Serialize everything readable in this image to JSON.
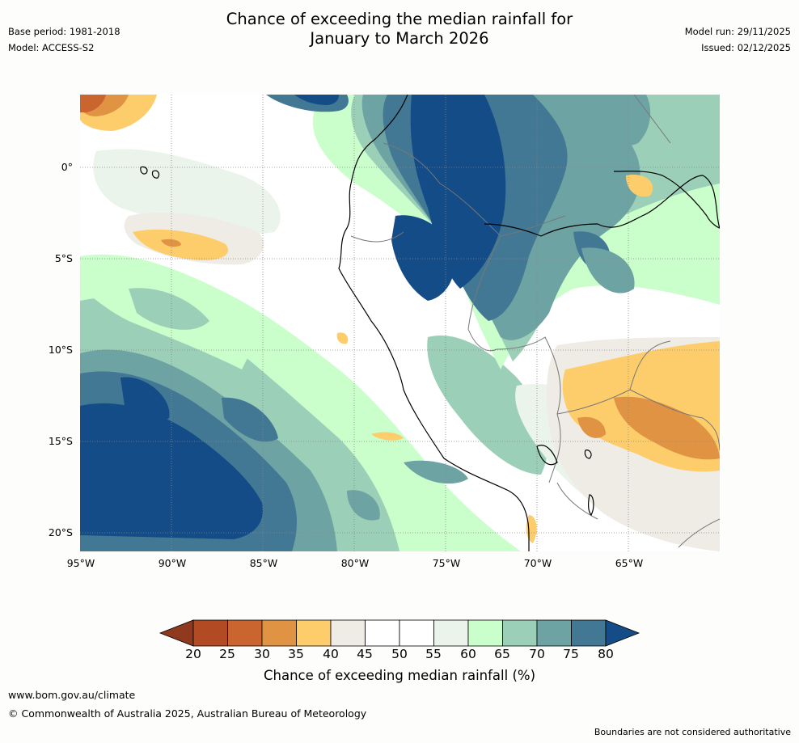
{
  "title_line1": "Chance of exceeding the median rainfall for",
  "title_line2": "January to March 2026",
  "base_period": "Base period: 1981-2018",
  "model": "Model: ACCESS-S2",
  "model_run": "Model run: 29/11/2025",
  "issued": "Issued: 02/12/2025",
  "lat_labels": [
    "0°",
    "5°S",
    "10°S",
    "15°S",
    "20°S"
  ],
  "lon_labels": [
    "95°W",
    "90°W",
    "85°W",
    "80°W",
    "75°W",
    "70°W",
    "65°W"
  ],
  "legend": {
    "ticks": [
      "20",
      "25",
      "30",
      "35",
      "40",
      "45",
      "50",
      "55",
      "60",
      "65",
      "70",
      "75",
      "80"
    ],
    "under_color": "#8f3a1f",
    "colors": [
      "#b24a24",
      "#cb6530",
      "#e09443",
      "#fdcd6b",
      "#efebe5",
      "#ffffff",
      "#ffffff",
      "#ebf4ea",
      "#cafecb",
      "#9bcfb7",
      "#6ea3a4",
      "#427894"
    ],
    "over_color": "#134c87",
    "label": "Chance of exceeding median rainfall (%)"
  },
  "colors": {
    "dark_blue": "#134c87",
    "mid_blue": "#427894",
    "teal": "#6ea3a4",
    "light_teal": "#9bcfb7",
    "light_green": "#cafecb",
    "pale_green": "#ebf4ea",
    "beige": "#efebe5",
    "yellow": "#fdcd6b",
    "orange": "#e09443",
    "dark_orange": "#cb6530"
  },
  "footer": {
    "url": "www.bom.gov.au/climate",
    "copyright": "© Commonwealth of Australia 2025, Australian Bureau of Meteorology",
    "disclaimer": "Boundaries are not considered authoritative"
  }
}
